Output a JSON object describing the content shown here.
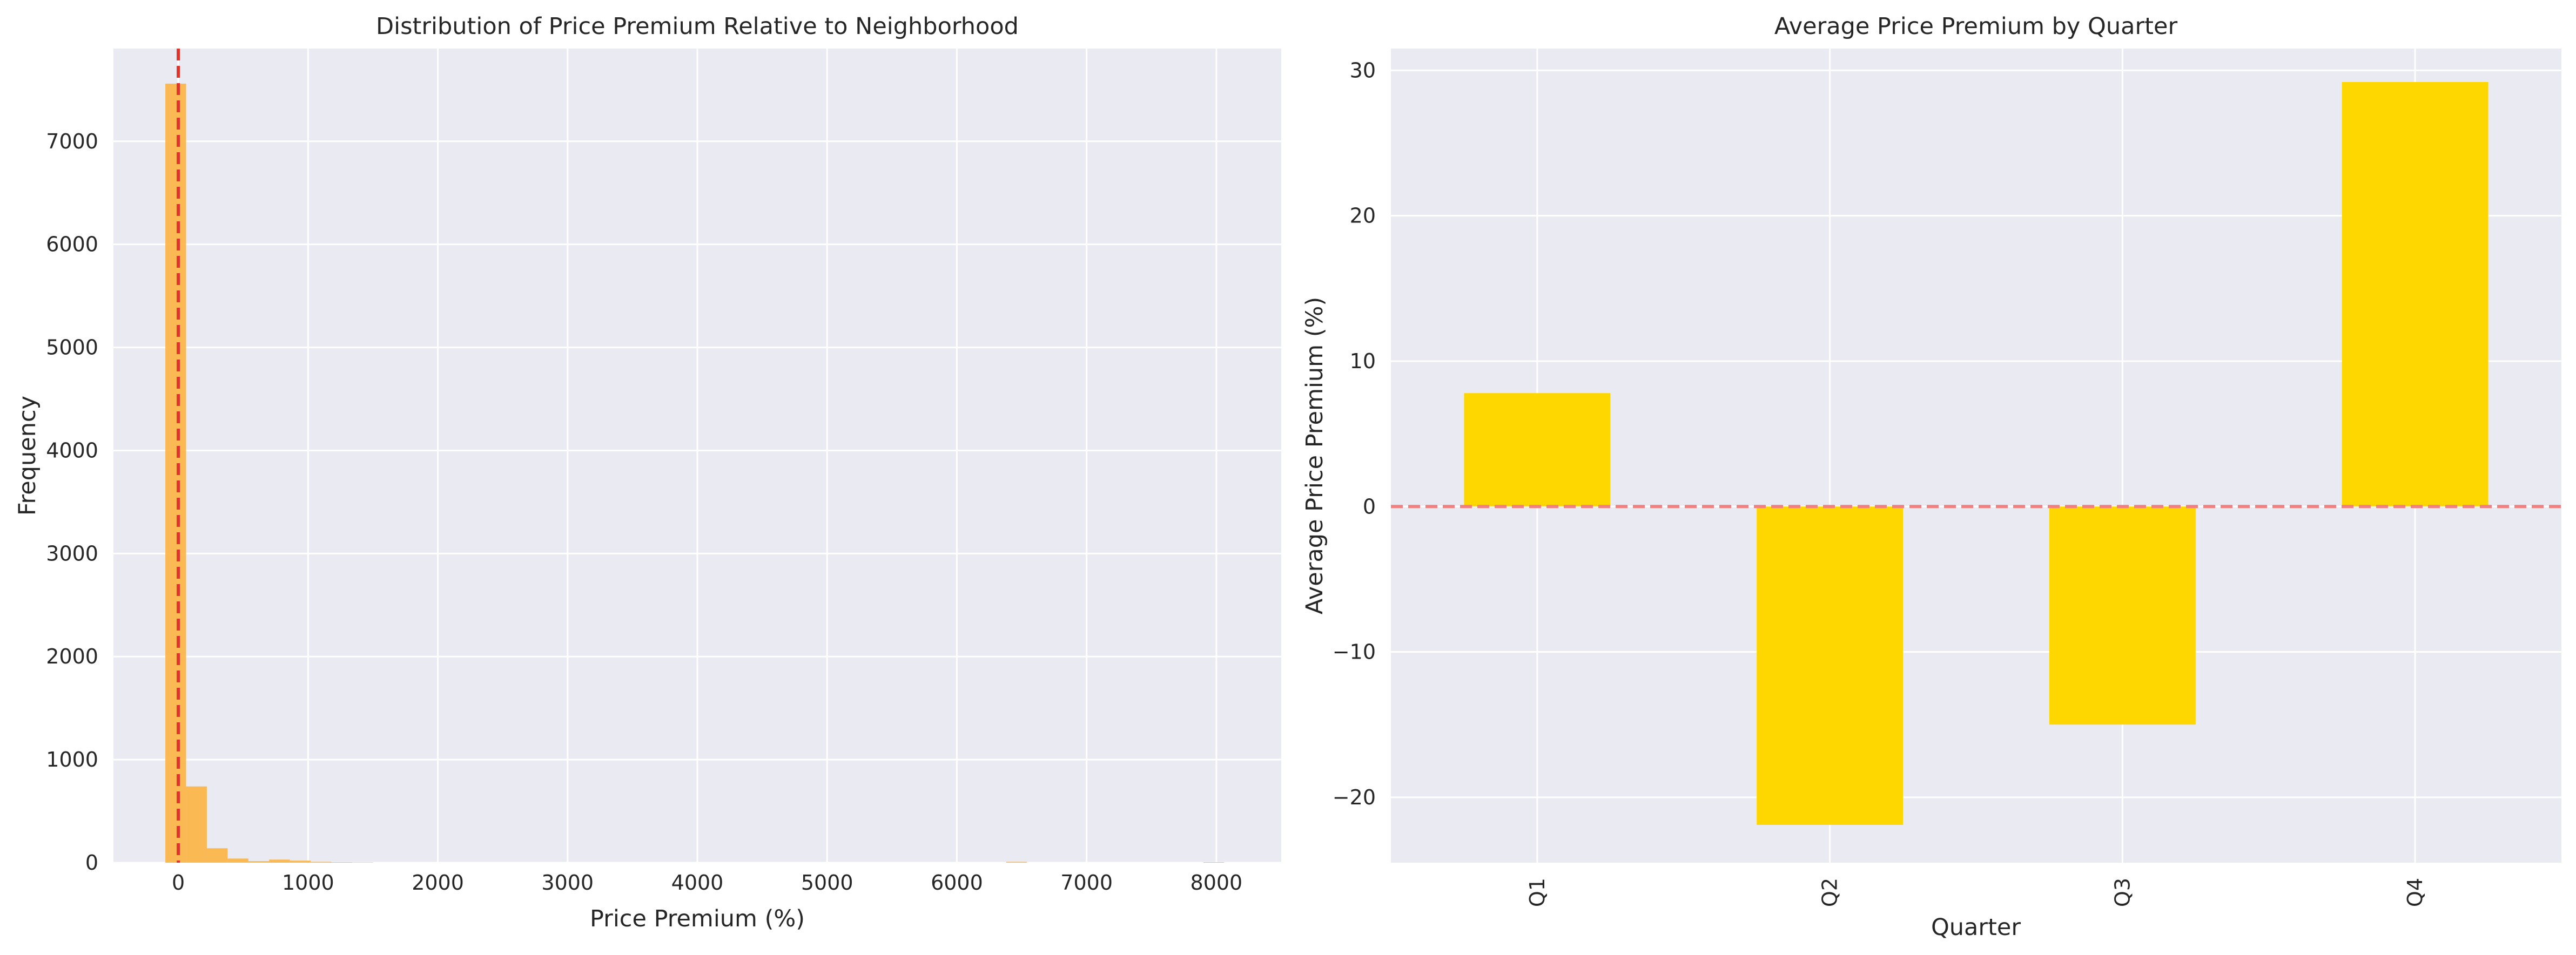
{
  "chart_data": [
    {
      "type": "bar",
      "subtype": "histogram",
      "title": "Distribution of Price Premium Relative to Neighborhood",
      "xlabel": "Price Premium (%)",
      "ylabel": "Frequency",
      "xlim": [
        -500,
        8500
      ],
      "ylim": [
        0,
        7900
      ],
      "xticks": [
        0,
        1000,
        2000,
        3000,
        4000,
        5000,
        6000,
        7000,
        8000
      ],
      "yticks": [
        0,
        1000,
        2000,
        3000,
        4000,
        5000,
        6000,
        7000
      ],
      "grid": true,
      "bar_color": "#FBB445",
      "reference_line": {
        "x": 0,
        "color": "#E0332B",
        "style": "dashed"
      },
      "bins": [
        {
          "x0": -100,
          "x1": 60,
          "count": 7560
        },
        {
          "x0": 60,
          "x1": 220,
          "count": 740
        },
        {
          "x0": 220,
          "x1": 380,
          "count": 140
        },
        {
          "x0": 380,
          "x1": 540,
          "count": 40
        },
        {
          "x0": 540,
          "x1": 700,
          "count": 15
        },
        {
          "x0": 700,
          "x1": 860,
          "count": 30
        },
        {
          "x0": 860,
          "x1": 1020,
          "count": 20
        },
        {
          "x0": 1020,
          "x1": 1180,
          "count": 8
        },
        {
          "x0": 1180,
          "x1": 1340,
          "count": 5
        },
        {
          "x0": 1340,
          "x1": 1500,
          "count": 3
        },
        {
          "x0": 6380,
          "x1": 6540,
          "count": 8
        },
        {
          "x0": 7900,
          "x1": 8060,
          "count": 5
        }
      ]
    },
    {
      "type": "bar",
      "title": "Average Price Premium by Quarter",
      "xlabel": "Quarter",
      "ylabel": "Average Price Premium (%)",
      "categories": [
        "Q1",
        "Q2",
        "Q3",
        "Q4"
      ],
      "values": [
        7.8,
        -21.9,
        -15.0,
        29.2
      ],
      "ylim": [
        -24.5,
        31.5
      ],
      "yticks": [
        -20,
        -10,
        0,
        10,
        20,
        30
      ],
      "ytick_labels": [
        "−20",
        "−10",
        "0",
        "10",
        "20",
        "30"
      ],
      "grid": true,
      "bar_color": "#FFD700",
      "reference_line": {
        "y": 0,
        "color": "#F28080",
        "style": "dashed"
      }
    }
  ]
}
